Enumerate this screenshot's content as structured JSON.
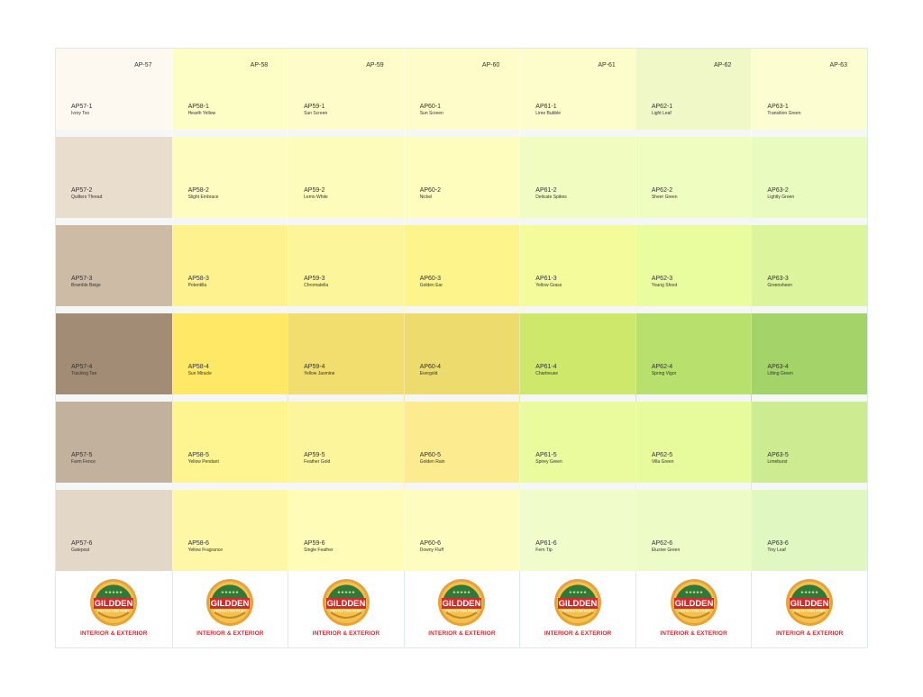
{
  "brand": {
    "logo_text": "GILDDEN",
    "logo_sub": "PROTECTION PAINT",
    "tagline": "INTERIOR & EXTERIOR"
  },
  "families": [
    {
      "label": "AP-57",
      "swatches": [
        {
          "code": "AP57-1",
          "name": "Ivory Too",
          "color": "#fdf9f1"
        },
        {
          "code": "AP57-2",
          "name": "Quilters Thread",
          "color": "#e9ddcd"
        },
        {
          "code": "AP57-3",
          "name": "Bramble Beige",
          "color": "#cdbba6"
        },
        {
          "code": "AP57-4",
          "name": "Tracking Tan",
          "color": "#a28c75"
        },
        {
          "code": "AP57-5",
          "name": "Farm Fence",
          "color": "#c2b19d"
        },
        {
          "code": "AP57-6",
          "name": "Gatepost",
          "color": "#e3d8c8"
        }
      ]
    },
    {
      "label": "AP-58",
      "swatches": [
        {
          "code": "AP58-1",
          "name": "Hearth Yellow",
          "color": "#fdfdc6"
        },
        {
          "code": "AP58-2",
          "name": "Slight Embrace",
          "color": "#fefdbf"
        },
        {
          "code": "AP58-3",
          "name": "Potentilla",
          "color": "#fef28e"
        },
        {
          "code": "AP58-4",
          "name": "Sun Miracle",
          "color": "#fee866"
        },
        {
          "code": "AP58-5",
          "name": "Yellow Pendant",
          "color": "#fef590"
        },
        {
          "code": "AP58-6",
          "name": "Yellow Fragrance",
          "color": "#fef7a5"
        }
      ]
    },
    {
      "label": "AP-59",
      "swatches": [
        {
          "code": "AP59-1",
          "name": "Sun Screen",
          "color": "#fefdc9"
        },
        {
          "code": "AP59-2",
          "name": "Lemo White",
          "color": "#fefcba"
        },
        {
          "code": "AP59-3",
          "name": "Chromatella",
          "color": "#fdf59a"
        },
        {
          "code": "AP59-4",
          "name": "Yellow Jasmine",
          "color": "#f1de6e"
        },
        {
          "code": "AP59-5",
          "name": "Feather Gold",
          "color": "#fdf59b"
        },
        {
          "code": "AP59-6",
          "name": "Single Feather",
          "color": "#fefcb6"
        }
      ]
    },
    {
      "label": "AP-60",
      "swatches": [
        {
          "code": "AP60-1",
          "name": "Sun Screen",
          "color": "#fefdc9"
        },
        {
          "code": "AP60-2",
          "name": "Nickel",
          "color": "#fefdbe"
        },
        {
          "code": "AP60-3",
          "name": "Golden Ear",
          "color": "#fdf48b"
        },
        {
          "code": "AP60-4",
          "name": "Evergold",
          "color": "#eddb6d"
        },
        {
          "code": "AP60-5",
          "name": "Golden Rain",
          "color": "#fdec8f"
        },
        {
          "code": "AP60-6",
          "name": "Downy Fluff",
          "color": "#fefdbf"
        }
      ]
    },
    {
      "label": "AP-61",
      "swatches": [
        {
          "code": "AP61-1",
          "name": "Lime Bubble",
          "color": "#fdfdcc"
        },
        {
          "code": "AP61-2",
          "name": "Delicate Spikes",
          "color": "#f1fdc0"
        },
        {
          "code": "AP61-3",
          "name": "Yellow Grass",
          "color": "#f4fb9b"
        },
        {
          "code": "AP61-4",
          "name": "Chartreuse",
          "color": "#cde86a"
        },
        {
          "code": "AP61-5",
          "name": "Spirey Green",
          "color": "#eafb9d"
        },
        {
          "code": "AP61-6",
          "name": "Fern Tip",
          "color": "#f0fdcb"
        }
      ]
    },
    {
      "label": "AP-62",
      "swatches": [
        {
          "code": "AP62-1",
          "name": "Light Leaf",
          "color": "#f0f8c8"
        },
        {
          "code": "AP62-2",
          "name": "Sheer Green",
          "color": "#f0fdc1"
        },
        {
          "code": "AP62-3",
          "name": "Young Shoot",
          "color": "#e9fd9f"
        },
        {
          "code": "AP62-4",
          "name": "Spring Vigor",
          "color": "#b8e06c"
        },
        {
          "code": "AP62-5",
          "name": "Villa Green",
          "color": "#e7fb9d"
        },
        {
          "code": "AP62-6",
          "name": "Elusive Green",
          "color": "#edfcc7"
        }
      ]
    },
    {
      "label": "AP-63",
      "swatches": [
        {
          "code": "AP63-1",
          "name": "Transition Green",
          "color": "#fdfdd2"
        },
        {
          "code": "AP63-2",
          "name": "Lightly Green",
          "color": "#eafbc0"
        },
        {
          "code": "AP63-3",
          "name": "Greensheen",
          "color": "#dcf49b"
        },
        {
          "code": "AP63-4",
          "name": "Lilting Green",
          "color": "#a4d36a"
        },
        {
          "code": "AP63-5",
          "name": "Limeburst",
          "color": "#cdeb90"
        },
        {
          "code": "AP63-6",
          "name": "Tiny Leaf",
          "color": "#e1f7c1"
        }
      ]
    }
  ]
}
